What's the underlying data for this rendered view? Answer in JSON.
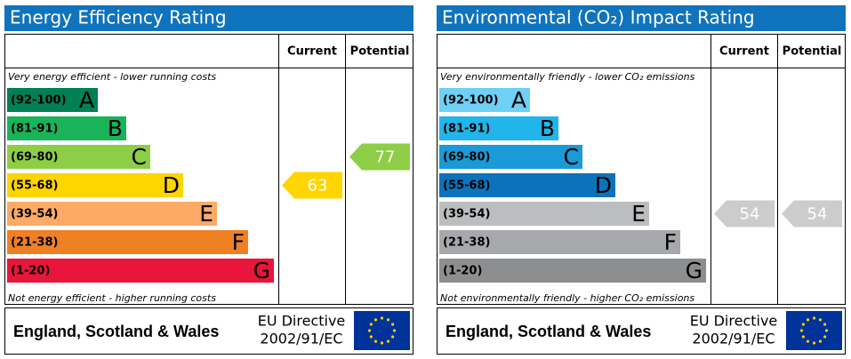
{
  "panels": [
    {
      "title": "Energy Efficiency Rating",
      "columns": [
        "Current",
        "Potential"
      ],
      "top_note": "Very energy efficient - lower running costs",
      "bottom_note": "Not energy efficient - higher running costs",
      "bands": [
        {
          "range": "(92-100)",
          "letter": "A",
          "color": "#008054"
        },
        {
          "range": "(81-91)",
          "letter": "B",
          "color": "#19b459"
        },
        {
          "range": "(69-80)",
          "letter": "C",
          "color": "#8dce46"
        },
        {
          "range": "(55-68)",
          "letter": "D",
          "color": "#ffd500"
        },
        {
          "range": "(39-54)",
          "letter": "E",
          "color": "#fcaa65"
        },
        {
          "range": "(21-38)",
          "letter": "F",
          "color": "#ef8023"
        },
        {
          "range": "(1-20)",
          "letter": "G",
          "color": "#e9153b"
        }
      ],
      "current": 63,
      "potential": 77,
      "current_color": "#ffd500",
      "potential_color": "#8dce46",
      "footer": {
        "region": "England, Scotland & Wales",
        "directive": [
          "EU Directive",
          "2002/91/EC"
        ]
      }
    },
    {
      "title": "Environmental (CO₂) Impact Rating",
      "columns": [
        "Current",
        "Potential"
      ],
      "top_note": "Very environmentally friendly - lower CO₂ emissions",
      "bottom_note": "Not environmentally friendly - higher CO₂ emissions",
      "bands": [
        {
          "range": "(92-100)",
          "letter": "A",
          "color": "#6fcff5"
        },
        {
          "range": "(81-91)",
          "letter": "B",
          "color": "#22b5eb"
        },
        {
          "range": "(69-80)",
          "letter": "C",
          "color": "#1a9ad6"
        },
        {
          "range": "(55-68)",
          "letter": "D",
          "color": "#0c73bb"
        },
        {
          "range": "(39-54)",
          "letter": "E",
          "color": "#bbbdbf"
        },
        {
          "range": "(21-38)",
          "letter": "F",
          "color": "#a6a8ab"
        },
        {
          "range": "(1-20)",
          "letter": "G",
          "color": "#8c8e90"
        }
      ],
      "current": 54,
      "potential": 54,
      "current_color": "#cccccc",
      "potential_color": "#cccccc",
      "footer": {
        "region": "England, Scotland & Wales",
        "directive": [
          "EU Directive",
          "2002/91/EC"
        ]
      }
    }
  ]
}
